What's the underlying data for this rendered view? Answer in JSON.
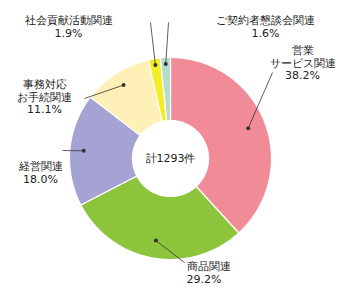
{
  "chart_data": {
    "type": "pie",
    "categories": [
      "営業\nサービス関連",
      "商品関連",
      "経営関連",
      "事務対応\nお手続関連",
      "社会貢献活動関連",
      "ご契約者懇談会関連"
    ],
    "values": [
      38.2,
      29.2,
      18.0,
      11.1,
      1.9,
      1.6
    ],
    "value_labels": [
      "38.2%",
      "29.2%",
      "18.0%",
      "11.1%",
      "1.9%",
      "1.6%"
    ],
    "colors": [
      "#f08b97",
      "#8cc43c",
      "#a5a3d3",
      "#fff0b8",
      "#f4ec24",
      "#b3dccb"
    ],
    "annotations": [
      "計1293件"
    ],
    "data_labels": true
  }
}
